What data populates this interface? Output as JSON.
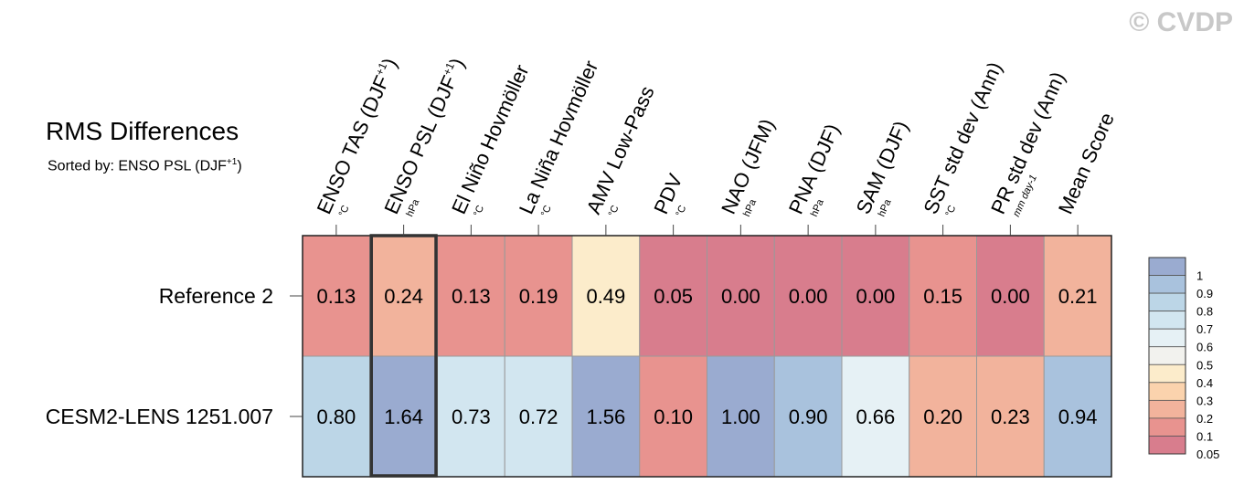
{
  "watermark": "© CVDP",
  "title": "RMS Differences",
  "subtitle_prefix": "Sorted by: ENSO PSL (DJF",
  "subtitle_sup": "+1",
  "subtitle_suffix": ")",
  "chart_data": {
    "type": "heatmap",
    "title": "RMS Differences",
    "columns": [
      {
        "label": "ENSO TAS (DJF",
        "sup": "+1",
        "suffix": ")",
        "unit": "°C"
      },
      {
        "label": "ENSO PSL (DJF",
        "sup": "+1",
        "suffix": ")",
        "unit": "hPa"
      },
      {
        "label": "El Niño Hovmöller",
        "sup": "",
        "suffix": "",
        "unit": "°C"
      },
      {
        "label": "La Niña Hovmöller",
        "sup": "",
        "suffix": "",
        "unit": "°C"
      },
      {
        "label": "AMV Low-Pass",
        "sup": "",
        "suffix": "",
        "unit": "°C"
      },
      {
        "label": "PDV",
        "sup": "",
        "suffix": "",
        "unit": "°C"
      },
      {
        "label": "NAO (JFM)",
        "sup": "",
        "suffix": "",
        "unit": "hPa"
      },
      {
        "label": "PNA (DJF)",
        "sup": "",
        "suffix": "",
        "unit": "hPa"
      },
      {
        "label": "SAM (DJF)",
        "sup": "",
        "suffix": "",
        "unit": "hPa"
      },
      {
        "label": "SST std dev (Ann)",
        "sup": "",
        "suffix": "",
        "unit": "°C"
      },
      {
        "label": "PR std dev (Ann)",
        "sup": "",
        "suffix": "",
        "unit": "mm day-1"
      },
      {
        "label": "Mean Score",
        "sup": "",
        "suffix": "",
        "unit": ""
      }
    ],
    "rows": [
      "Reference 2",
      "CESM2-LENS 1251.007"
    ],
    "values": [
      [
        "0.13",
        "0.24",
        "0.13",
        "0.19",
        "0.49",
        "0.05",
        "0.00",
        "0.00",
        "0.00",
        "0.15",
        "0.00",
        "0.21"
      ],
      [
        "0.80",
        "1.64",
        "0.73",
        "0.72",
        "1.56",
        "0.10",
        "1.00",
        "0.90",
        "0.66",
        "0.20",
        "0.23",
        "0.94"
      ]
    ],
    "highlight_column": 1,
    "colorbar": {
      "labels": [
        "1",
        "0.9",
        "0.8",
        "0.7",
        "0.6",
        "0.5",
        "0.4",
        "0.3",
        "0.2",
        "0.1",
        "0.05"
      ],
      "colors": [
        "#9aabd0",
        "#a9c2dd",
        "#bcd6e7",
        "#d2e6f0",
        "#e6f1f5",
        "#f2f2ee",
        "#fceccb",
        "#fbd3ad",
        "#f2b39c",
        "#e8938f",
        "#d87d8d"
      ]
    }
  }
}
